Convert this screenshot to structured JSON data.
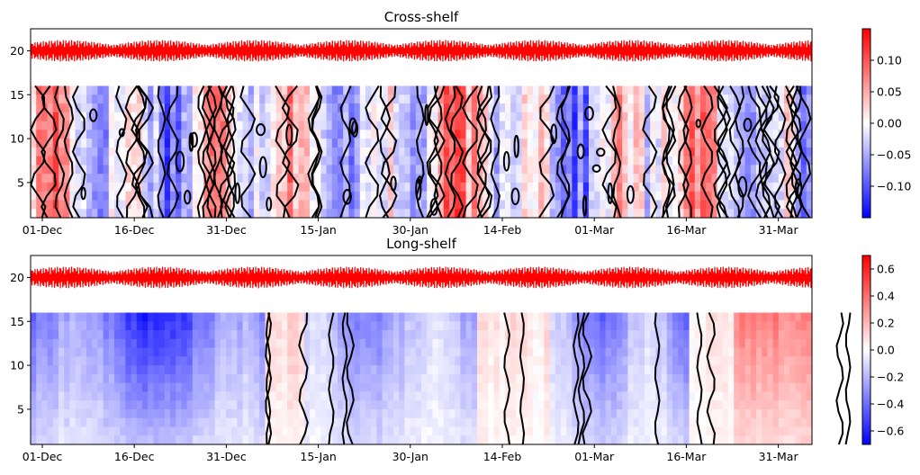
{
  "chart_data": [
    {
      "type": "heatmap",
      "title": "Cross-shelf",
      "x_ticks": [
        "01-Dec",
        "16-Dec",
        "31-Dec",
        "15-Jan",
        "30-Jan",
        "14-Feb",
        "01-Mar",
        "16-Mar",
        "31-Mar"
      ],
      "y_ticks": [
        5,
        10,
        15,
        20
      ],
      "ylim": [
        1,
        22.5
      ],
      "depth_range": [
        1,
        16
      ],
      "tide_trace": {
        "center": 20,
        "color": "#ff0000"
      },
      "colorbar": {
        "ticks": [
          "0.10",
          "0.05",
          "0.00",
          "−0.05",
          "−0.10"
        ],
        "tick_values": [
          0.1,
          0.05,
          0.0,
          -0.05,
          -0.1
        ],
        "range": [
          -0.15,
          0.15
        ],
        "colors": [
          "#0000ff",
          "#ffffff",
          "#ff0000"
        ]
      },
      "contour_color": "#000000"
    },
    {
      "type": "heatmap",
      "title": "Long-shelf",
      "x_ticks": [
        "01-Dec",
        "16-Dec",
        "31-Dec",
        "15-Jan",
        "30-Jan",
        "14-Feb",
        "01-Mar",
        "16-Mar",
        "31-Mar"
      ],
      "y_ticks": [
        5,
        10,
        15,
        20
      ],
      "ylim": [
        1,
        22.5
      ],
      "depth_range": [
        1,
        16
      ],
      "tide_trace": {
        "center": 20,
        "color": "#ff0000"
      },
      "colorbar": {
        "ticks": [
          "0.6",
          "0.4",
          "0.2",
          "0.0",
          "−0.2",
          "−0.4",
          "−0.6"
        ],
        "tick_values": [
          0.6,
          0.4,
          0.2,
          0.0,
          -0.2,
          -0.4,
          -0.6
        ],
        "range": [
          -0.7,
          0.7
        ],
        "colors": [
          "#0000ff",
          "#ffffff",
          "#ff0000"
        ]
      },
      "contour_color": "#000000"
    }
  ]
}
